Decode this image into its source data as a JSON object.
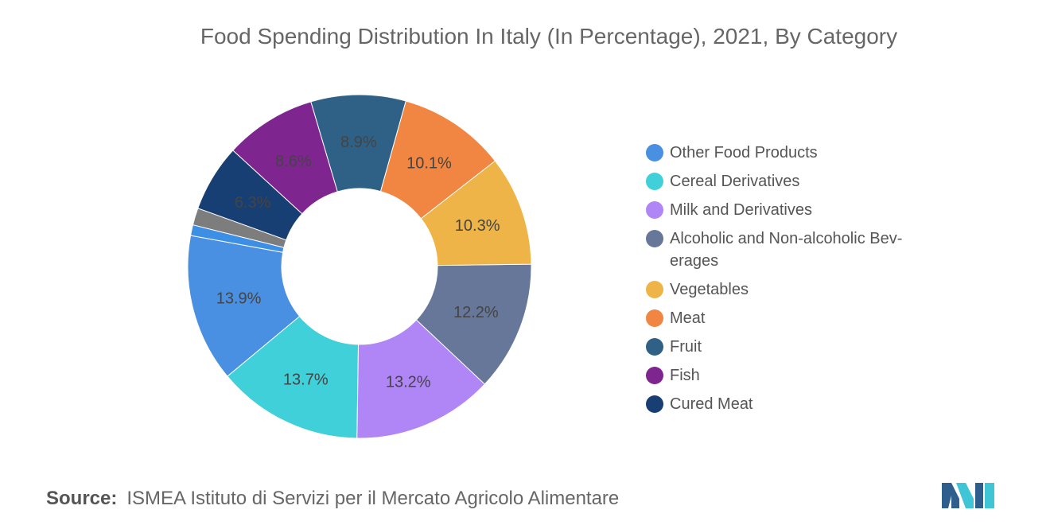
{
  "chart_data": {
    "type": "pie",
    "title": "Food Spending Distribution In Italy (In Percentage), 2021, By Category",
    "slices": [
      {
        "name": "Other Food Products",
        "value": 13.9,
        "label": "13.9%",
        "color": "#4A90E2"
      },
      {
        "name": "Cereal Derivatives",
        "value": 13.7,
        "label": "13.7%",
        "color": "#3FD0DA"
      },
      {
        "name": "Milk and Derivatives",
        "value": 13.2,
        "label": "13.2%",
        "color": "#B085F5"
      },
      {
        "name": "Alcoholic and Non-alcoholic Bev-erages",
        "value": 12.2,
        "label": "12.2%",
        "color": "#667799"
      },
      {
        "name": "Vegetables",
        "value": 10.3,
        "label": "10.3%",
        "color": "#EEB447"
      },
      {
        "name": "Meat",
        "value": 10.1,
        "label": "10.1%",
        "color": "#F08641"
      },
      {
        "name": "Fruit",
        "value": 8.9,
        "label": "8.9%",
        "color": "#2F6186"
      },
      {
        "name": "Fish",
        "value": 8.6,
        "label": "8.6%",
        "color": "#7F2590"
      },
      {
        "name": "Cured Meat",
        "value": 6.3,
        "label": "6.3%",
        "color": "#173F73"
      },
      {
        "name": "",
        "value": 1.6,
        "label": "",
        "color": "#7D7D7D"
      },
      {
        "name": "",
        "value": 1.0,
        "label": "",
        "color": "#3D8FE6"
      }
    ],
    "legend": {
      "position": "right"
    },
    "donut": true
  },
  "legend_items": [
    {
      "label": "Other Food Products",
      "color": "#4A90E2"
    },
    {
      "label": "Cereal Derivatives",
      "color": "#3FD0DA"
    },
    {
      "label": "Milk and Derivatives",
      "color": "#B085F5"
    },
    {
      "label": "Alcoholic and Non-alcoholic Bev-\nerages",
      "color": "#667799"
    },
    {
      "label": "Vegetables",
      "color": "#EEB447"
    },
    {
      "label": "Meat",
      "color": "#F08641"
    },
    {
      "label": "Fruit",
      "color": "#2F6186"
    },
    {
      "label": "Fish",
      "color": "#7F2590"
    },
    {
      "label": "Cured Meat",
      "color": "#173F73"
    }
  ],
  "source": {
    "label": "Source:",
    "text": "ISMEA Istituto di Servizi per il Mercato Agricolo Alimentare"
  },
  "logo": {
    "icon": "mordor-logo-icon",
    "colors": [
      "#2E5E8C",
      "#3FC5D5"
    ]
  }
}
